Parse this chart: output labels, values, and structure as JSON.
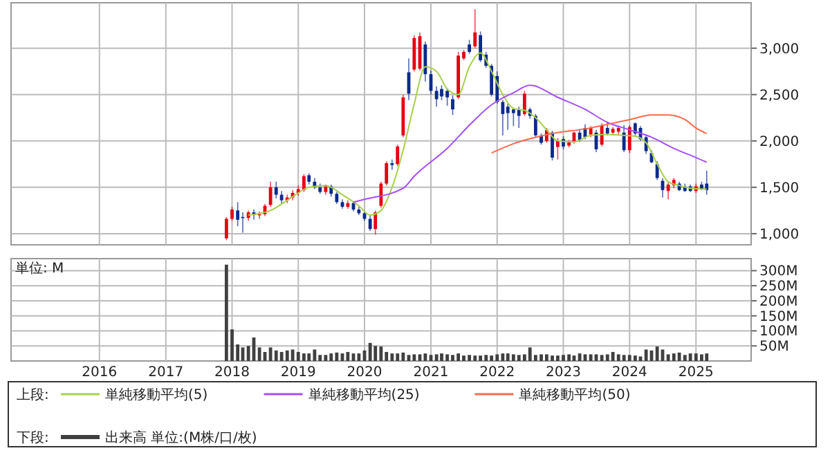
{
  "chart_data": [
    {
      "type": "candlestick",
      "legend": "bottom",
      "legend_title": "上段:",
      "grid": true,
      "tick_labels": "y",
      "xlim": [
        "2014-09",
        "2025-11"
      ],
      "xticks": [
        {
          "value": "2016",
          "label": null
        },
        {
          "value": "2017",
          "label": null
        },
        {
          "value": "2018",
          "label": null
        },
        {
          "value": "2019",
          "label": null
        },
        {
          "value": "2020",
          "label": null
        },
        {
          "value": "2021",
          "label": null
        },
        {
          "value": "2022",
          "label": null
        },
        {
          "value": "2023",
          "label": null
        },
        {
          "value": "2024",
          "label": null
        },
        {
          "value": "2025",
          "label": null
        }
      ],
      "ylim": [
        880,
        3490
      ],
      "yticks": [
        {
          "value": 1000,
          "label": "1,000"
        },
        {
          "value": 1500,
          "label": "1,500"
        },
        {
          "value": 2000,
          "label": "2,000"
        },
        {
          "value": 2500,
          "label": "2,500"
        },
        {
          "value": 3000,
          "label": "3,000"
        }
      ],
      "series": [
        {
          "x": [
            "2017-12",
            "2018-01",
            "2018-02",
            "2018-03",
            "2018-04",
            "2018-05",
            "2018-06",
            "2018-07",
            "2018-08",
            "2018-09",
            "2018-10",
            "2018-11",
            "2018-12",
            "2019-01",
            "2019-02",
            "2019-03",
            "2019-04",
            "2019-05",
            "2019-06",
            "2019-07",
            "2019-08",
            "2019-09",
            "2019-10",
            "2019-11",
            "2019-12",
            "2020-01",
            "2020-02",
            "2020-03",
            "2020-04",
            "2020-05",
            "2020-06",
            "2020-07",
            "2020-08",
            "2020-09",
            "2020-10",
            "2020-11",
            "2020-12",
            "2021-01",
            "2021-02",
            "2021-03",
            "2021-04",
            "2021-05",
            "2021-06",
            "2021-07",
            "2021-08",
            "2021-09",
            "2021-10",
            "2021-11",
            "2021-12",
            "2022-01",
            "2022-02",
            "2022-03",
            "2022-04",
            "2022-05",
            "2022-06",
            "2022-07",
            "2022-08",
            "2022-09",
            "2022-10",
            "2022-11",
            "2022-12",
            "2023-01",
            "2023-02",
            "2023-03",
            "2023-04",
            "2023-05",
            "2023-06",
            "2023-07",
            "2023-08",
            "2023-09",
            "2023-10",
            "2023-11",
            "2023-12",
            "2024-01",
            "2024-02",
            "2024-03",
            "2024-04",
            "2024-05",
            "2024-06",
            "2024-07",
            "2024-08",
            "2024-09",
            "2024-10",
            "2024-11",
            "2024-12",
            "2025-01",
            "2025-02",
            "2025-03"
          ],
          "ohlc": [
            [
              950,
              1180,
              930,
              1160
            ],
            [
              1160,
              1290,
              1140,
              1260
            ],
            [
              1250,
              1340,
              1080,
              1150
            ],
            [
              1180,
              1230,
              1010,
              1170
            ],
            [
              1170,
              1250,
              1140,
              1230
            ],
            [
              1230,
              1260,
              1150,
              1200
            ],
            [
              1200,
              1240,
              1160,
              1210
            ],
            [
              1210,
              1320,
              1190,
              1300
            ],
            [
              1310,
              1560,
              1290,
              1500
            ],
            [
              1500,
              1560,
              1380,
              1420
            ],
            [
              1420,
              1460,
              1320,
              1360
            ],
            [
              1360,
              1420,
              1330,
              1390
            ],
            [
              1390,
              1470,
              1360,
              1440
            ],
            [
              1440,
              1520,
              1410,
              1480
            ],
            [
              1470,
              1640,
              1450,
              1620
            ],
            [
              1630,
              1650,
              1530,
              1560
            ],
            [
              1560,
              1600,
              1480,
              1500
            ],
            [
              1500,
              1540,
              1430,
              1450
            ],
            [
              1450,
              1530,
              1420,
              1510
            ],
            [
              1510,
              1530,
              1400,
              1430
            ],
            [
              1430,
              1450,
              1320,
              1340
            ],
            [
              1340,
              1370,
              1270,
              1290
            ],
            [
              1290,
              1360,
              1270,
              1330
            ],
            [
              1330,
              1350,
              1240,
              1260
            ],
            [
              1260,
              1290,
              1200,
              1220
            ],
            [
              1220,
              1250,
              1140,
              1160
            ],
            [
              1160,
              1200,
              1030,
              1050
            ],
            [
              1050,
              1250,
              990,
              1230
            ],
            [
              1300,
              1560,
              1280,
              1540
            ],
            [
              1540,
              1780,
              1520,
              1760
            ],
            [
              1760,
              1800,
              1690,
              1740
            ],
            [
              1750,
              1960,
              1730,
              1940
            ],
            [
              2060,
              2500,
              2040,
              2470
            ],
            [
              2740,
              2890,
              2440,
              2510
            ],
            [
              2770,
              3140,
              2750,
              3110
            ],
            [
              2780,
              3170,
              2760,
              3130
            ],
            [
              3040,
              3070,
              2640,
              2720
            ],
            [
              2720,
              2760,
              2500,
              2540
            ],
            [
              2540,
              2590,
              2370,
              2450
            ],
            [
              2560,
              2600,
              2440,
              2480
            ],
            [
              2540,
              2570,
              2380,
              2470
            ],
            [
              2450,
              2490,
              2280,
              2340
            ],
            [
              2470,
              2960,
              2450,
              2920
            ],
            [
              2890,
              2980,
              2870,
              2960
            ],
            [
              3040,
              3090,
              2940,
              2960
            ],
            [
              3020,
              3420,
              3000,
              3170
            ],
            [
              3140,
              3180,
              2850,
              2870
            ],
            [
              2930,
              2960,
              2790,
              2810
            ],
            [
              2810,
              2830,
              2480,
              2500
            ],
            [
              2700,
              2750,
              2400,
              2420
            ],
            [
              2420,
              2440,
              2060,
              2290
            ],
            [
              2370,
              2400,
              2120,
              2300
            ],
            [
              2340,
              2360,
              2160,
              2300
            ],
            [
              2340,
              2370,
              2140,
              2270
            ],
            [
              2290,
              2540,
              2270,
              2510
            ],
            [
              2340,
              2360,
              2240,
              2270
            ],
            [
              2270,
              2290,
              2040,
              2060
            ],
            [
              2060,
              2080,
              1960,
              1980
            ],
            [
              2000,
              2140,
              1980,
              2120
            ],
            [
              2090,
              2110,
              1790,
              1820
            ],
            [
              1935,
              2030,
              1800,
              2000
            ],
            [
              2020,
              2050,
              1910,
              1940
            ],
            [
              1950,
              2010,
              1930,
              1990
            ],
            [
              1990,
              2100,
              1970,
              2090
            ],
            [
              2090,
              2130,
              1990,
              2010
            ],
            [
              2140,
              2180,
              2020,
              2040
            ],
            [
              2070,
              2160,
              2040,
              2140
            ],
            [
              2090,
              2120,
              1880,
              1910
            ],
            [
              1960,
              2190,
              1940,
              2170
            ],
            [
              2140,
              2200,
              2060,
              2080
            ],
            [
              2090,
              2150,
              2060,
              2130
            ],
            [
              2100,
              2150,
              2070,
              2140
            ],
            [
              2090,
              2170,
              1880,
              1900
            ],
            [
              1900,
              2170,
              1870,
              2150
            ],
            [
              2190,
              2200,
              2060,
              2080
            ],
            [
              2140,
              2160,
              2000,
              2020
            ],
            [
              2040,
              2070,
              1860,
              1890
            ],
            [
              1870,
              1900,
              1760,
              1770
            ],
            [
              1750,
              1780,
              1580,
              1600
            ],
            [
              1570,
              1600,
              1390,
              1470
            ],
            [
              1460,
              1560,
              1370,
              1530
            ],
            [
              1520,
              1600,
              1490,
              1580
            ],
            [
              1540,
              1560,
              1460,
              1470
            ],
            [
              1510,
              1540,
              1450,
              1460
            ],
            [
              1510,
              1530,
              1450,
              1460
            ],
            [
              1460,
              1540,
              1440,
              1510
            ],
            [
              1530,
              1560,
              1470,
              1480
            ],
            [
              1540,
              1680,
              1420,
              1470
            ]
          ],
          "colors": [
            "#e60012",
            "#e60012",
            "#0b2a8c",
            "#0b2a8c",
            "#e60012",
            "#0b2a8c",
            "#e60012",
            "#e60012",
            "#e60012",
            "#0b2a8c",
            "#0b2a8c",
            "#e60012",
            "#e60012",
            "#e60012",
            "#e60012",
            "#0b2a8c",
            "#0b2a8c",
            "#0b2a8c",
            "#e60012",
            "#0b2a8c",
            "#0b2a8c",
            "#0b2a8c",
            "#e60012",
            "#0b2a8c",
            "#0b2a8c",
            "#0b2a8c",
            "#0b2a8c",
            "#e60012",
            "#e60012",
            "#e60012",
            "#0b2a8c",
            "#e60012",
            "#e60012",
            "#0b2a8c",
            "#e60012",
            "#e60012",
            "#0b2a8c",
            "#0b2a8c",
            "#0b2a8c",
            "#0b2a8c",
            "#0b2a8c",
            "#0b2a8c",
            "#e60012",
            "#e60012",
            "#0b2a8c",
            "#e60012",
            "#0b2a8c",
            "#0b2a8c",
            "#0b2a8c",
            "#0b2a8c",
            "#0b2a8c",
            "#0b2a8c",
            "#0b2a8c",
            "#0b2a8c",
            "#e60012",
            "#0b2a8c",
            "#0b2a8c",
            "#0b2a8c",
            "#e60012",
            "#0b2a8c",
            "#e60012",
            "#0b2a8c",
            "#e60012",
            "#e60012",
            "#0b2a8c",
            "#0b2a8c",
            "#e60012",
            "#0b2a8c",
            "#e60012",
            "#0b2a8c",
            "#e60012",
            "#e60012",
            "#0b2a8c",
            "#e60012",
            "#0b2a8c",
            "#0b2a8c",
            "#0b2a8c",
            "#0b2a8c",
            "#0b2a8c",
            "#0b2a8c",
            "#e60012",
            "#e60012",
            "#0b2a8c",
            "#0b2a8c",
            "#0b2a8c",
            "#e60012",
            "#0b2a8c",
            "#0b2a8c"
          ]
        },
        {
          "type": "line",
          "name": "単純移動平均(5)",
          "color": "#a8d04a",
          "x": [
            "2018-04",
            "2018-08",
            "2018-12",
            "2019-03",
            "2019-06",
            "2019-09",
            "2019-12",
            "2020-02",
            "2020-04",
            "2020-06",
            "2020-08",
            "2020-10",
            "2020-12",
            "2021-02",
            "2021-04",
            "2021-06",
            "2021-08",
            "2021-10",
            "2021-12",
            "2022-02",
            "2022-04",
            "2022-06",
            "2022-08",
            "2022-10",
            "2022-12",
            "2023-03",
            "2023-06",
            "2023-09",
            "2023-12",
            "2024-02",
            "2024-04",
            "2024-06",
            "2024-08",
            "2024-10",
            "2024-12",
            "2025-03"
          ],
          "values": [
            1200,
            1250,
            1400,
            1500,
            1520,
            1420,
            1300,
            1200,
            1250,
            1500,
            1900,
            2400,
            2800,
            2750,
            2560,
            2500,
            2800,
            2950,
            2750,
            2500,
            2350,
            2330,
            2250,
            2120,
            2000,
            1990,
            2060,
            2070,
            2060,
            2050,
            1980,
            1750,
            1560,
            1520,
            1490,
            1480
          ]
        },
        {
          "type": "line",
          "name": "単純移動平均(25)",
          "color": "#a64dff",
          "x": [
            "2019-11",
            "2020-01",
            "2020-08",
            "2020-10",
            "2021-04",
            "2021-08",
            "2021-12",
            "2022-04",
            "2022-07",
            "2022-12",
            "2023-05",
            "2023-09",
            "2024-01",
            "2024-05",
            "2024-09",
            "2025-01",
            "2025-03"
          ],
          "values": [
            1340,
            1370,
            1490,
            1620,
            1920,
            2170,
            2390,
            2520,
            2600,
            2470,
            2340,
            2200,
            2120,
            2040,
            1920,
            1820,
            1770
          ]
        },
        {
          "type": "line",
          "name": "単純移動平均(50)",
          "color": "#ff6a4d",
          "x": [
            "2021-12",
            "2022-04",
            "2022-08",
            "2022-12",
            "2023-05",
            "2023-09",
            "2024-01",
            "2024-05",
            "2024-08",
            "2024-11",
            "2025-01",
            "2025-03"
          ],
          "values": [
            1870,
            1970,
            2040,
            2090,
            2130,
            2180,
            2230,
            2280,
            2280,
            2230,
            2140,
            2080
          ]
        }
      ]
    },
    {
      "type": "bar",
      "legend": "bottom",
      "legend_title": "下段:",
      "grid": true,
      "annotations": [
        "単位: M"
      ],
      "xlim": [
        "2014-09",
        "2025-11"
      ],
      "xticks": [
        {
          "value": "2016",
          "label": "2016"
        },
        {
          "value": "2017",
          "label": "2017"
        },
        {
          "value": "2018",
          "label": "2018"
        },
        {
          "value": "2019",
          "label": "2019"
        },
        {
          "value": "2020",
          "label": "2020"
        },
        {
          "value": "2021",
          "label": "2021"
        },
        {
          "value": "2022",
          "label": "2022"
        },
        {
          "value": "2023",
          "label": "2023"
        },
        {
          "value": "2024",
          "label": "2024"
        },
        {
          "value": "2025",
          "label": "2025"
        }
      ],
      "ylim": [
        0,
        340
      ],
      "yticks": [
        {
          "value": 50,
          "label": "50M"
        },
        {
          "value": 100,
          "label": "100M"
        },
        {
          "value": 150,
          "label": "150M"
        },
        {
          "value": 200,
          "label": "200M"
        },
        {
          "value": 250,
          "label": "250M"
        },
        {
          "value": 300,
          "label": "300M"
        }
      ],
      "series": [
        {
          "name": "出来高 単位:(M株/口/枚)",
          "color": "#404040",
          "x": [
            "2017-12",
            "2018-01",
            "2018-02",
            "2018-03",
            "2018-04",
            "2018-05",
            "2018-06",
            "2018-07",
            "2018-08",
            "2018-09",
            "2018-10",
            "2018-11",
            "2018-12",
            "2019-01",
            "2019-02",
            "2019-03",
            "2019-04",
            "2019-05",
            "2019-06",
            "2019-07",
            "2019-08",
            "2019-09",
            "2019-10",
            "2019-11",
            "2019-12",
            "2020-01",
            "2020-02",
            "2020-03",
            "2020-04",
            "2020-05",
            "2020-06",
            "2020-07",
            "2020-08",
            "2020-09",
            "2020-10",
            "2020-11",
            "2020-12",
            "2021-01",
            "2021-02",
            "2021-03",
            "2021-04",
            "2021-05",
            "2021-06",
            "2021-07",
            "2021-08",
            "2021-09",
            "2021-10",
            "2021-11",
            "2021-12",
            "2022-01",
            "2022-02",
            "2022-03",
            "2022-04",
            "2022-05",
            "2022-06",
            "2022-07",
            "2022-08",
            "2022-09",
            "2022-10",
            "2022-11",
            "2022-12",
            "2023-01",
            "2023-02",
            "2023-03",
            "2023-04",
            "2023-05",
            "2023-06",
            "2023-07",
            "2023-08",
            "2023-09",
            "2023-10",
            "2023-11",
            "2023-12",
            "2024-01",
            "2024-02",
            "2024-03",
            "2024-04",
            "2024-05",
            "2024-06",
            "2024-07",
            "2024-08",
            "2024-09",
            "2024-10",
            "2024-11",
            "2024-12",
            "2025-01",
            "2025-02",
            "2025-03"
          ],
          "values": [
            320,
            105,
            55,
            45,
            50,
            78,
            45,
            30,
            45,
            35,
            30,
            35,
            38,
            30,
            25,
            25,
            38,
            20,
            20,
            25,
            28,
            25,
            30,
            25,
            25,
            35,
            60,
            50,
            48,
            30,
            25,
            25,
            28,
            20,
            22,
            22,
            25,
            20,
            22,
            25,
            22,
            20,
            25,
            18,
            20,
            18,
            18,
            20,
            18,
            22,
            25,
            25,
            22,
            20,
            22,
            45,
            20,
            22,
            22,
            18,
            18,
            20,
            22,
            18,
            25,
            22,
            22,
            22,
            20,
            22,
            30,
            22,
            20,
            20,
            18,
            15,
            38,
            35,
            48,
            38,
            22,
            25,
            28,
            20,
            25,
            25,
            22,
            25
          ]
        }
      ]
    }
  ]
}
